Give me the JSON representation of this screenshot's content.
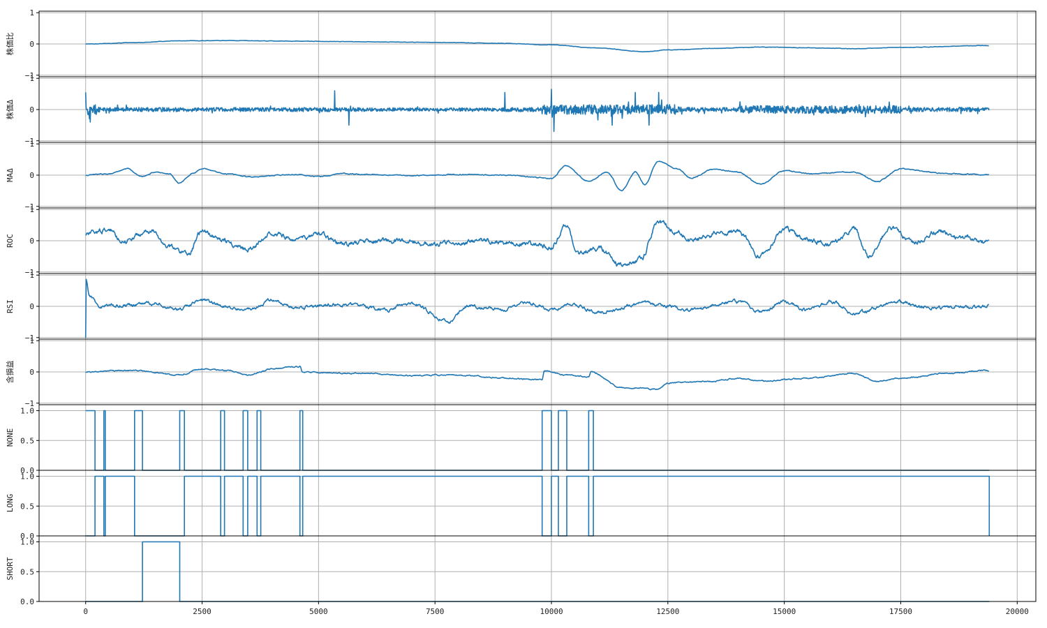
{
  "chart_data": {
    "type": "line",
    "xlim": [
      -1000,
      20400
    ],
    "x_ticks": [
      0,
      2500,
      5000,
      7500,
      10000,
      12500,
      15000,
      17500,
      20000
    ],
    "x_tick_labels": [
      "0",
      "2500",
      "5000",
      "7500",
      "10000",
      "12500",
      "15000",
      "17500",
      "20000"
    ],
    "x_max": 19400,
    "grid": true,
    "line_color": "#1f77b4",
    "panels": [
      {
        "ylabel": "株価比",
        "kind": "continuous",
        "ylim": [
          -1.05,
          1.05
        ],
        "y_ticks": [
          -1,
          0,
          1
        ],
        "y_tick_labels": [
          "−1",
          "0",
          "1"
        ],
        "noise": 0.004,
        "points": [
          [
            0,
            0.0
          ],
          [
            1000,
            0.04
          ],
          [
            2000,
            0.1
          ],
          [
            3000,
            0.11
          ],
          [
            4500,
            0.09
          ],
          [
            6000,
            0.07
          ],
          [
            7500,
            0.05
          ],
          [
            9000,
            0.02
          ],
          [
            10000,
            -0.03
          ],
          [
            11000,
            -0.13
          ],
          [
            12000,
            -0.25
          ],
          [
            12500,
            -0.19
          ],
          [
            13500,
            -0.14
          ],
          [
            14500,
            -0.1
          ],
          [
            15500,
            -0.12
          ],
          [
            16500,
            -0.15
          ],
          [
            17500,
            -0.11
          ],
          [
            19400,
            -0.05
          ]
        ]
      },
      {
        "ylabel": "株価Δ",
        "kind": "spiky",
        "ylim": [
          -1.05,
          1.05
        ],
        "y_ticks": [
          -1,
          0,
          1
        ],
        "y_tick_labels": [
          "−1",
          "0",
          "1"
        ],
        "amplitude": 0.12,
        "spikes": [
          [
            0,
            0.55
          ],
          [
            100,
            -0.4
          ],
          [
            5350,
            0.6
          ],
          [
            5650,
            -0.5
          ],
          [
            9000,
            0.55
          ],
          [
            10000,
            0.65
          ],
          [
            10050,
            -0.7
          ],
          [
            11300,
            -0.5
          ],
          [
            11800,
            0.55
          ],
          [
            12100,
            -0.5
          ],
          [
            12300,
            0.55
          ]
        ]
      },
      {
        "ylabel": "MAΔ",
        "kind": "continuous",
        "ylim": [
          -1.05,
          1.05
        ],
        "y_ticks": [
          -1,
          0,
          1
        ],
        "y_tick_labels": [
          "−1",
          "0",
          "1"
        ],
        "noise": 0.01,
        "points": [
          [
            0,
            0
          ],
          [
            200,
            0.02
          ],
          [
            500,
            0.05
          ],
          [
            900,
            0.2
          ],
          [
            1200,
            -0.05
          ],
          [
            1500,
            0.1
          ],
          [
            1800,
            0.05
          ],
          [
            2000,
            -0.25
          ],
          [
            2300,
            0.05
          ],
          [
            2500,
            0.2
          ],
          [
            3000,
            0.05
          ],
          [
            3500,
            -0.05
          ],
          [
            4500,
            0.02
          ],
          [
            5000,
            -0.05
          ],
          [
            5500,
            0.05
          ],
          [
            6000,
            0.02
          ],
          [
            7000,
            -0.02
          ],
          [
            8000,
            0.02
          ],
          [
            9000,
            0.0
          ],
          [
            10000,
            -0.1
          ],
          [
            10300,
            0.3
          ],
          [
            10800,
            -0.2
          ],
          [
            11200,
            0.1
          ],
          [
            11500,
            -0.5
          ],
          [
            11800,
            0.1
          ],
          [
            12000,
            -0.3
          ],
          [
            12300,
            0.45
          ],
          [
            12700,
            0.2
          ],
          [
            13000,
            -0.1
          ],
          [
            13500,
            0.2
          ],
          [
            14000,
            0.1
          ],
          [
            14500,
            -0.3
          ],
          [
            15000,
            0.15
          ],
          [
            15500,
            0.05
          ],
          [
            16500,
            0.1
          ],
          [
            17000,
            -0.2
          ],
          [
            17500,
            0.2
          ],
          [
            18500,
            0.05
          ],
          [
            19400,
            0.02
          ]
        ]
      },
      {
        "ylabel": "ROC",
        "kind": "continuous",
        "ylim": [
          -1.05,
          1.05
        ],
        "y_ticks": [
          -1,
          0,
          1
        ],
        "y_tick_labels": [
          "−1",
          "0",
          "1"
        ],
        "noise": 0.05,
        "points": [
          [
            0,
            0.2
          ],
          [
            500,
            0.35
          ],
          [
            800,
            0.0
          ],
          [
            1400,
            0.3
          ],
          [
            1800,
            -0.2
          ],
          [
            2200,
            -0.4
          ],
          [
            2500,
            0.3
          ],
          [
            3000,
            0.0
          ],
          [
            3500,
            -0.3
          ],
          [
            4000,
            0.3
          ],
          [
            4500,
            0.0
          ],
          [
            5000,
            0.2
          ],
          [
            5500,
            -0.1
          ],
          [
            6500,
            0.0
          ],
          [
            7500,
            -0.1
          ],
          [
            8500,
            0.0
          ],
          [
            9500,
            -0.1
          ],
          [
            10000,
            -0.2
          ],
          [
            10300,
            0.5
          ],
          [
            10600,
            -0.4
          ],
          [
            11000,
            -0.2
          ],
          [
            11500,
            -0.8
          ],
          [
            11900,
            -0.6
          ],
          [
            12300,
            0.6
          ],
          [
            12700,
            0.3
          ],
          [
            13000,
            0.0
          ],
          [
            13500,
            0.2
          ],
          [
            14000,
            0.3
          ],
          [
            14500,
            -0.5
          ],
          [
            15000,
            0.4
          ],
          [
            15500,
            0.0
          ],
          [
            16000,
            -0.1
          ],
          [
            16500,
            0.4
          ],
          [
            16800,
            -0.5
          ],
          [
            17300,
            0.4
          ],
          [
            17800,
            -0.1
          ],
          [
            18300,
            0.3
          ],
          [
            18800,
            0.1
          ],
          [
            19400,
            -0.05
          ]
        ]
      },
      {
        "ylabel": "RSI",
        "kind": "continuous",
        "ylim": [
          -1.05,
          1.05
        ],
        "y_ticks": [
          -1,
          0,
          1
        ],
        "y_tick_labels": [
          "−1",
          "0",
          "1"
        ],
        "noise": 0.035,
        "points": [
          [
            0,
            -1.0
          ],
          [
            10,
            0.85
          ],
          [
            80,
            0.3
          ],
          [
            300,
            0.0
          ],
          [
            1000,
            0.05
          ],
          [
            1500,
            0.1
          ],
          [
            2000,
            -0.1
          ],
          [
            2500,
            0.2
          ],
          [
            3000,
            0.0
          ],
          [
            3500,
            -0.1
          ],
          [
            4000,
            0.2
          ],
          [
            4500,
            -0.05
          ],
          [
            5500,
            0.05
          ],
          [
            6500,
            -0.1
          ],
          [
            7000,
            0.1
          ],
          [
            7800,
            -0.5
          ],
          [
            8200,
            0.0
          ],
          [
            9000,
            -0.1
          ],
          [
            9500,
            0.1
          ],
          [
            10000,
            -0.1
          ],
          [
            10500,
            0.05
          ],
          [
            11000,
            -0.2
          ],
          [
            12000,
            0.1
          ],
          [
            13000,
            -0.1
          ],
          [
            14000,
            0.15
          ],
          [
            14500,
            -0.2
          ],
          [
            15000,
            0.15
          ],
          [
            15500,
            -0.1
          ],
          [
            16000,
            0.15
          ],
          [
            16500,
            -0.2
          ],
          [
            17500,
            0.15
          ],
          [
            18000,
            -0.05
          ],
          [
            19400,
            0.0
          ]
        ]
      },
      {
        "ylabel": "含損益",
        "kind": "continuous",
        "ylim": [
          -1.05,
          1.05
        ],
        "y_ticks": [
          -1,
          0,
          1
        ],
        "y_tick_labels": [
          "−1",
          "0",
          "1"
        ],
        "noise": 0.012,
        "points": [
          [
            0,
            0.0
          ],
          [
            1000,
            0.05
          ],
          [
            2000,
            -0.1
          ],
          [
            2500,
            0.1
          ],
          [
            3000,
            0.05
          ],
          [
            3500,
            -0.1
          ],
          [
            4000,
            0.1
          ],
          [
            4600,
            0.18
          ],
          [
            4650,
            0.0
          ],
          [
            6000,
            -0.05
          ],
          [
            7000,
            -0.12
          ],
          [
            8000,
            -0.1
          ],
          [
            9000,
            -0.2
          ],
          [
            9800,
            -0.25
          ],
          [
            9850,
            0.05
          ],
          [
            10300,
            -0.1
          ],
          [
            10800,
            -0.15
          ],
          [
            10850,
            0.0
          ],
          [
            11500,
            -0.5
          ],
          [
            12300,
            -0.55
          ],
          [
            12500,
            -0.35
          ],
          [
            13500,
            -0.3
          ],
          [
            14000,
            -0.2
          ],
          [
            14500,
            -0.3
          ],
          [
            15500,
            -0.2
          ],
          [
            16500,
            -0.05
          ],
          [
            17000,
            -0.3
          ],
          [
            17500,
            -0.2
          ],
          [
            18500,
            -0.05
          ],
          [
            19400,
            0.05
          ]
        ]
      },
      {
        "ylabel": "NONE",
        "kind": "step",
        "ylim": [
          0,
          1.1
        ],
        "y_ticks": [
          0,
          0.5,
          1
        ],
        "y_tick_labels": [
          "0.0",
          "0.5",
          "1.0"
        ],
        "intervals": [
          [
            0,
            200
          ],
          [
            390,
            420
          ],
          [
            1050,
            1220
          ],
          [
            2020,
            2120
          ],
          [
            2900,
            2980
          ],
          [
            3380,
            3480
          ],
          [
            3680,
            3760
          ],
          [
            4600,
            4660
          ],
          [
            9800,
            10000
          ],
          [
            10150,
            10330
          ],
          [
            10800,
            10900
          ]
        ]
      },
      {
        "ylabel": "LONG",
        "kind": "step",
        "ylim": [
          0,
          1.1
        ],
        "y_ticks": [
          0,
          0.5,
          1
        ],
        "y_tick_labels": [
          "0.0",
          "0.5",
          "1.0"
        ],
        "intervals": [
          [
            200,
            390
          ],
          [
            420,
            1050
          ],
          [
            2120,
            2900
          ],
          [
            2980,
            3380
          ],
          [
            3480,
            3680
          ],
          [
            3760,
            4600
          ],
          [
            4660,
            9800
          ],
          [
            10000,
            10150
          ],
          [
            10330,
            10800
          ],
          [
            10900,
            19400
          ]
        ]
      },
      {
        "ylabel": "SHORT",
        "kind": "step",
        "ylim": [
          0,
          1.1
        ],
        "y_ticks": [
          0,
          0.5,
          1
        ],
        "y_tick_labels": [
          "0.0",
          "0.5",
          "1.0"
        ],
        "intervals": [
          [
            1220,
            2020
          ]
        ]
      }
    ]
  }
}
